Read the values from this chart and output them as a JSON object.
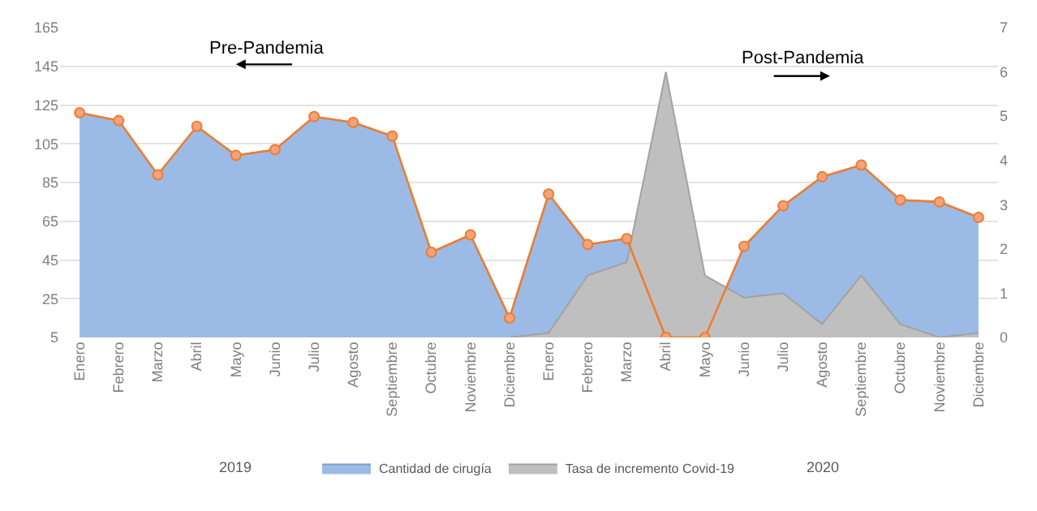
{
  "chart_data": {
    "type": "area",
    "categories": [
      "Enero",
      "Febrero",
      "Marzo",
      "Abril",
      "Mayo",
      "Junio",
      "Julio",
      "Agosto",
      "Septiembre",
      "Octubre",
      "Noviembre",
      "Diciembre",
      "Enero",
      "Febrero",
      "Marzo",
      "Abril",
      "Mayo",
      "Junio",
      "Julio",
      "Agosto",
      "Septiembre",
      "Octubre",
      "Noviembre",
      "Diciembre"
    ],
    "series": [
      {
        "name": "Cantidad de cirugía",
        "color": "#9bbbe6",
        "marker": "none",
        "values": [
          121,
          117,
          89,
          114,
          99,
          102,
          119,
          116,
          109,
          49,
          58,
          15,
          79,
          53,
          56,
          5,
          5,
          52,
          73,
          88,
          94,
          76,
          75,
          67
        ]
      },
      {
        "type": "line",
        "color": "#ed7d31",
        "marker": "circle",
        "values": [
          121,
          117,
          89,
          114,
          99,
          102,
          119,
          116,
          109,
          49,
          58,
          15,
          79,
          53,
          56,
          5,
          5,
          52,
          73,
          88,
          94,
          76,
          75,
          67
        ]
      },
      {
        "name": "Tasa de incremento Covid-19",
        "color": "#bfbfbf",
        "axis": "y2",
        "marker": "none",
        "values": [
          null,
          null,
          null,
          null,
          null,
          null,
          null,
          null,
          null,
          null,
          null,
          0,
          0.1,
          1.4,
          1.7,
          6,
          1.4,
          0.9,
          1,
          0.3,
          1.4,
          0.3,
          0,
          0.1
        ]
      }
    ],
    "ylim": [
      5,
      165
    ],
    "yticks": [
      5,
      25,
      45,
      65,
      85,
      105,
      125,
      145,
      165
    ],
    "y2lim": [
      0,
      7
    ],
    "y2ticks": [
      0,
      1,
      2,
      3,
      4,
      5,
      6,
      7
    ],
    "grid": "y",
    "legend": "bottom",
    "annotations": [
      "Pre-Pandemia",
      "Post-Pandemia",
      "2019",
      "2020"
    ]
  }
}
